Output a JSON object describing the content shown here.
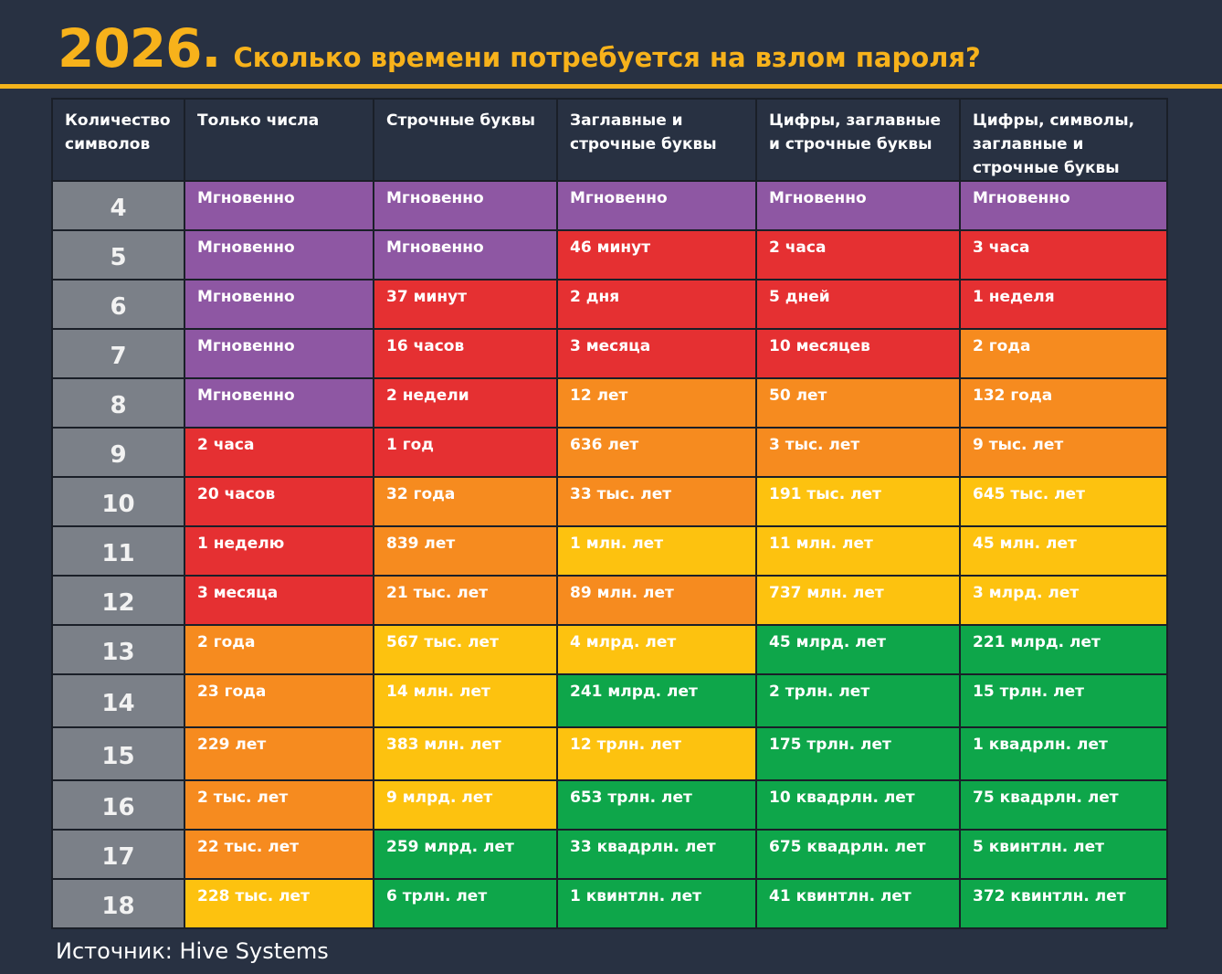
{
  "title": {
    "year": "2026.",
    "text": "Сколько времени потребуется на взлом пароля?"
  },
  "source": "Источник: Hive Systems",
  "colors": {
    "instant": "#8e57a3",
    "red": "#e53032",
    "orange": "#f68b1f",
    "yellow": "#fdc20f",
    "green": "#0ea64a",
    "accent": "#f7b21b"
  },
  "chart_data": {
    "type": "table",
    "columns": [
      "Количество символов",
      "Только числа",
      "Строчные буквы",
      "Заглавные и строчные буквы",
      "Цифры, заглавные и строчные буквы",
      "Цифры, символы, заглавные и строчные буквы"
    ],
    "rows": [
      {
        "length": "4",
        "cells": [
          "Мгновенно",
          "Мгновенно",
          "Мгновенно",
          "Мгновенно",
          "Мгновенно"
        ],
        "colors": [
          "instant",
          "instant",
          "instant",
          "instant",
          "instant"
        ]
      },
      {
        "length": "5",
        "cells": [
          "Мгновенно",
          "Мгновенно",
          "46 минут",
          "2 часа",
          "3 часа"
        ],
        "colors": [
          "instant",
          "instant",
          "red",
          "red",
          "red"
        ]
      },
      {
        "length": "6",
        "cells": [
          "Мгновенно",
          "37 минут",
          "2 дня",
          "5 дней",
          "1 неделя"
        ],
        "colors": [
          "instant",
          "red",
          "red",
          "red",
          "red"
        ]
      },
      {
        "length": "7",
        "cells": [
          "Мгновенно",
          "16 часов",
          "3 месяца",
          "10 месяцев",
          "2 года"
        ],
        "colors": [
          "instant",
          "red",
          "red",
          "red",
          "orange"
        ]
      },
      {
        "length": "8",
        "cells": [
          "Мгновенно",
          "2 недели",
          "12 лет",
          "50 лет",
          "132 года"
        ],
        "colors": [
          "instant",
          "red",
          "orange",
          "orange",
          "orange"
        ]
      },
      {
        "length": "9",
        "cells": [
          "2 часа",
          "1 год",
          "636 лет",
          "3 тыс. лет",
          "9 тыс. лет"
        ],
        "colors": [
          "red",
          "red",
          "orange",
          "orange",
          "orange"
        ]
      },
      {
        "length": "10",
        "cells": [
          "20 часов",
          "32 года",
          "33 тыс. лет",
          "191 тыс. лет",
          "645 тыс. лет"
        ],
        "colors": [
          "red",
          "orange",
          "orange",
          "yellow",
          "yellow"
        ]
      },
      {
        "length": "11",
        "cells": [
          "1 неделю",
          "839 лет",
          "1 млн. лет",
          "11 млн. лет",
          "45 млн. лет"
        ],
        "colors": [
          "red",
          "orange",
          "yellow",
          "yellow",
          "yellow"
        ]
      },
      {
        "length": "12",
        "cells": [
          "3 месяца",
          "21 тыс. лет",
          "89 млн. лет",
          "737 млн. лет",
          "3 млрд. лет"
        ],
        "colors": [
          "red",
          "orange",
          "orange",
          "yellow",
          "yellow"
        ]
      },
      {
        "length": "13",
        "cells": [
          "2 года",
          "567 тыс. лет",
          "4 млрд. лет",
          "45 млрд. лет",
          "221 млрд. лет"
        ],
        "colors": [
          "orange",
          "yellow",
          "yellow",
          "green",
          "green"
        ]
      },
      {
        "length": "14",
        "cells": [
          "23 года",
          "14 млн. лет",
          "241 млрд. лет",
          "2 трлн. лет",
          "15 трлн. лет"
        ],
        "colors": [
          "orange",
          "yellow",
          "green",
          "green",
          "green"
        ]
      },
      {
        "length": "15",
        "cells": [
          "229 лет",
          "383 млн. лет",
          "12 трлн. лет",
          "175 трлн. лет",
          "1 квадрлн. лет"
        ],
        "colors": [
          "orange",
          "yellow",
          "yellow",
          "green",
          "green"
        ]
      },
      {
        "length": "16",
        "cells": [
          "2 тыс. лет",
          "9 млрд. лет",
          "653 трлн. лет",
          "10 квадрлн. лет",
          "75 квадрлн. лет"
        ],
        "colors": [
          "orange",
          "yellow",
          "green",
          "green",
          "green"
        ]
      },
      {
        "length": "17",
        "cells": [
          "22 тыс. лет",
          "259 млрд. лет",
          "33 квадрлн. лет",
          "675 квадрлн. лет",
          "5 квинтлн. лет"
        ],
        "colors": [
          "orange",
          "green",
          "green",
          "green",
          "green"
        ]
      },
      {
        "length": "18",
        "cells": [
          "228 тыс. лет",
          "6 трлн. лет",
          "1 квинтлн. лет",
          "41 квинтлн. лет",
          "372 квинтлн. лет"
        ],
        "colors": [
          "yellow",
          "green",
          "green",
          "green",
          "green"
        ]
      }
    ]
  }
}
